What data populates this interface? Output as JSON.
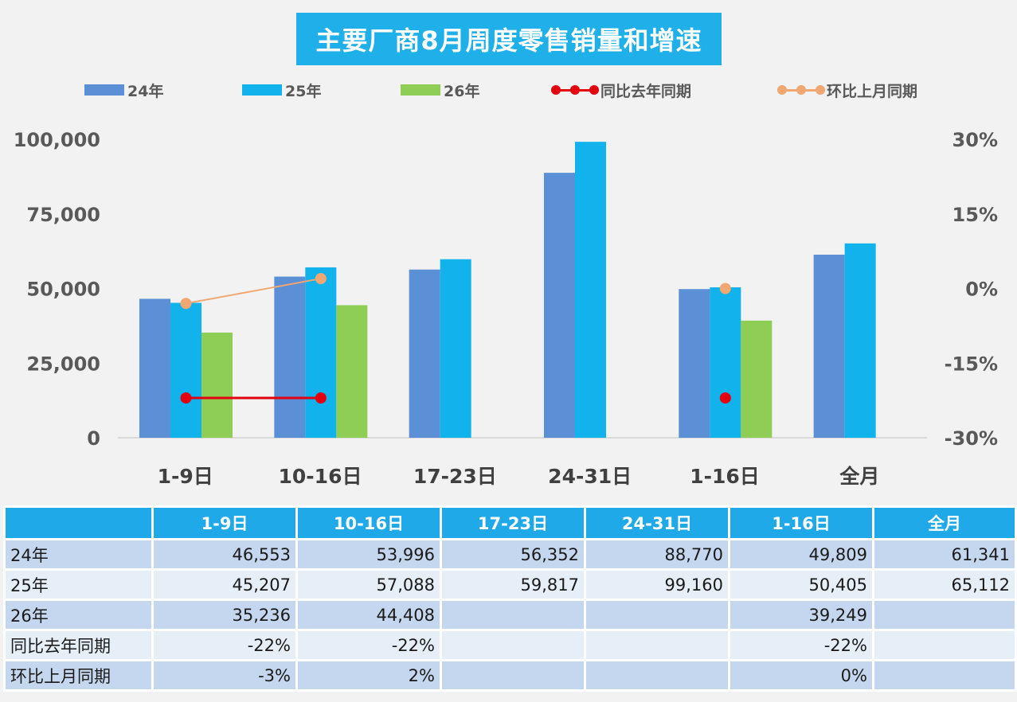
{
  "title": "主要厂商8月周度零售销量和增速",
  "legend": {
    "s24": "24年",
    "s25": "25年",
    "s26": "26年",
    "yoy": "同比去年同期",
    "mom": "环比上月同期"
  },
  "colors": {
    "s24": "#5b8fd6",
    "s25": "#12b2ec",
    "s26": "#8fce55",
    "yoy": "#e3000f",
    "mom": "#f0a772",
    "header": "#1fa9e8"
  },
  "chart_data": {
    "type": "bar",
    "title": "主要厂商8月周度零售销量和增速",
    "categories": [
      "1-9日",
      "10-16日",
      "17-23日",
      "24-31日",
      "1-16日",
      "全月"
    ],
    "series": [
      {
        "name": "24年",
        "values": [
          46553,
          53996,
          56352,
          88770,
          49809,
          61341
        ]
      },
      {
        "name": "25年",
        "values": [
          45207,
          57088,
          59817,
          99160,
          50405,
          65112
        ]
      },
      {
        "name": "26年",
        "values": [
          35236,
          44408,
          null,
          null,
          39249,
          null
        ]
      }
    ],
    "line_series": [
      {
        "name": "同比去年同期",
        "values": [
          -22,
          -22,
          null,
          null,
          -22,
          null
        ],
        "unit": "%"
      },
      {
        "name": "环比上月同期",
        "values": [
          -3,
          2,
          null,
          null,
          0,
          null
        ],
        "unit": "%"
      }
    ],
    "y_left": {
      "ylim": [
        0,
        100000
      ],
      "ticks": [
        "0",
        "25,000",
        "50,000",
        "75,000",
        "100,000"
      ]
    },
    "y_right": {
      "ylim": [
        -30,
        30
      ],
      "ticks": [
        "-30%",
        "-15%",
        "0%",
        "15%",
        "30%"
      ]
    },
    "legend_position": "top",
    "grid": false
  },
  "table": {
    "headers": [
      "",
      "1-9日",
      "10-16日",
      "17-23日",
      "24-31日",
      "1-16日",
      "全月"
    ],
    "rows": [
      {
        "label": "24年",
        "cells": [
          "46,553",
          "53,996",
          "56,352",
          "88,770",
          "49,809",
          "61,341"
        ]
      },
      {
        "label": "25年",
        "cells": [
          "45,207",
          "57,088",
          "59,817",
          "99,160",
          "50,405",
          "65,112"
        ]
      },
      {
        "label": "26年",
        "cells": [
          "35,236",
          "44,408",
          "",
          "",
          "39,249",
          ""
        ]
      },
      {
        "label": "同比去年同期",
        "cells": [
          "-22%",
          "-22%",
          "",
          "",
          "-22%",
          ""
        ]
      },
      {
        "label": "环比上月同期",
        "cells": [
          "-3%",
          "2%",
          "",
          "",
          "0%",
          ""
        ]
      }
    ]
  }
}
